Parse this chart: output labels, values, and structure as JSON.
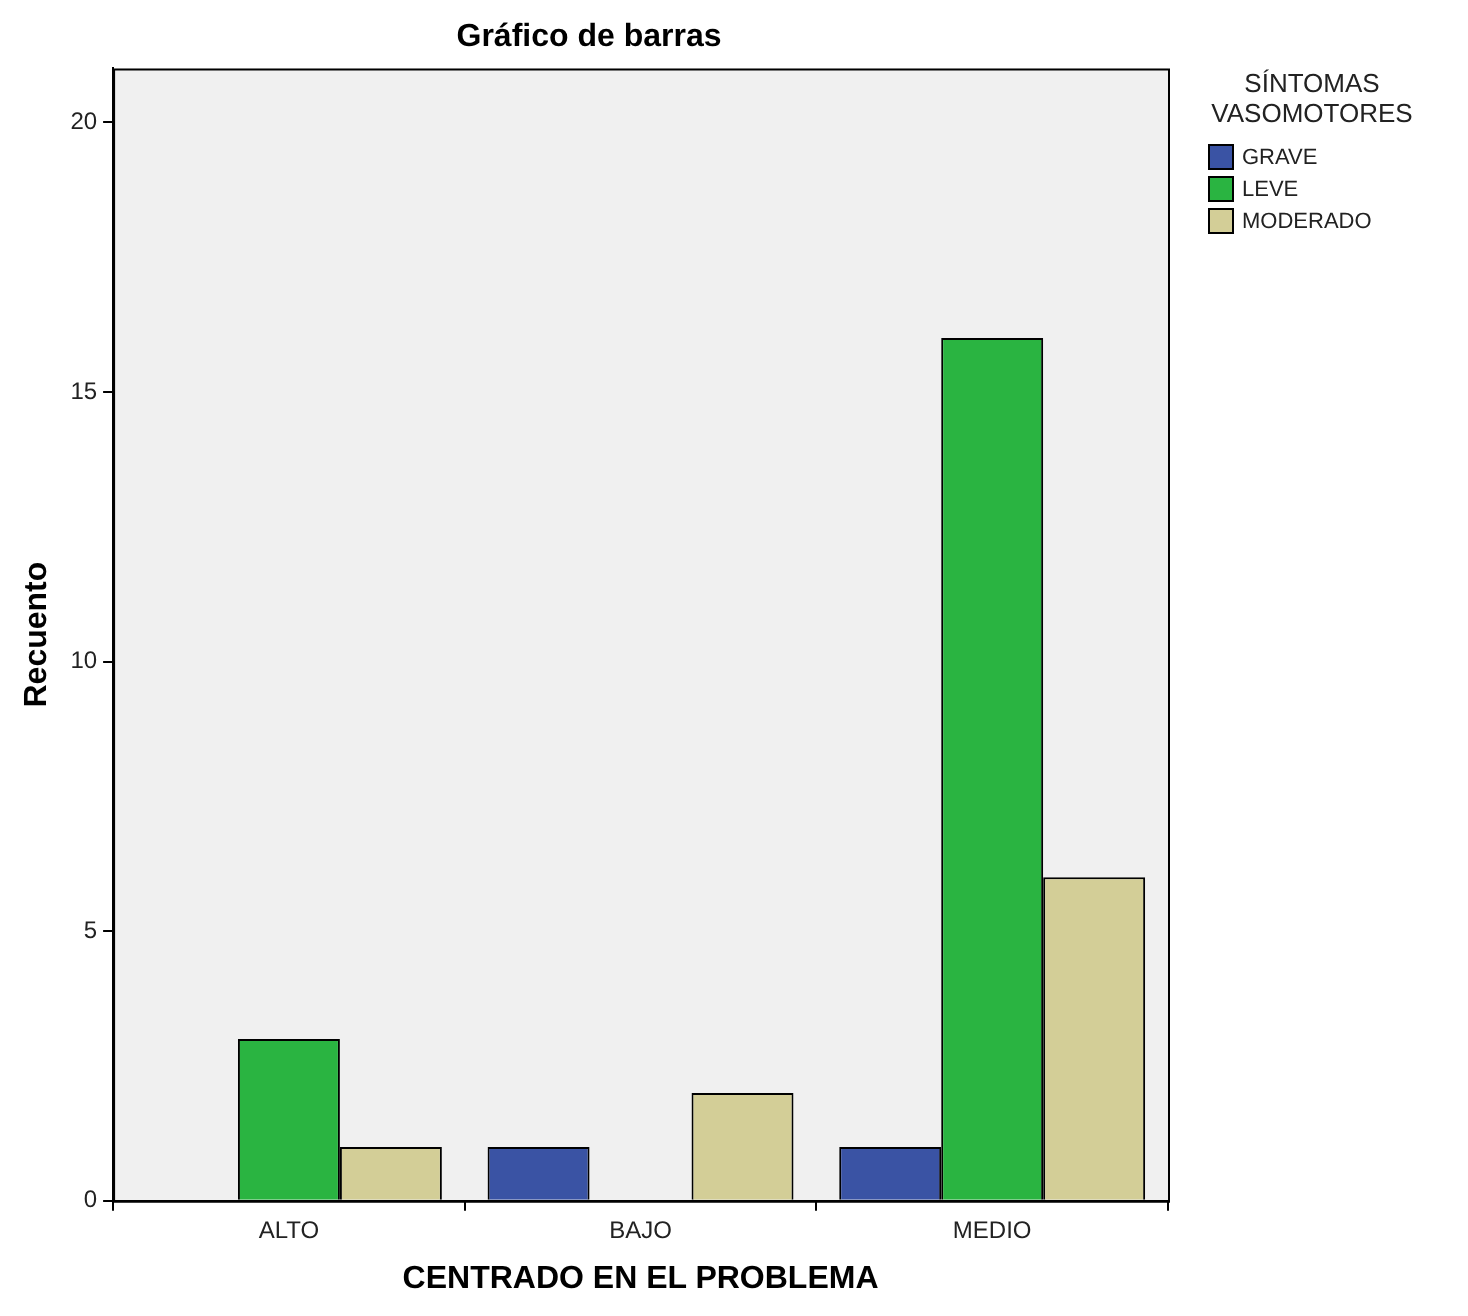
{
  "chart_data": {
    "type": "bar",
    "title": "Gráfico de barras",
    "xlabel": "CENTRADO EN EL PROBLEMA",
    "ylabel": "Recuento",
    "legend_title": "SÍNTOMAS VASOMOTORES",
    "categories": [
      "ALTO",
      "BAJO",
      "MEDIO"
    ],
    "series": [
      {
        "name": "GRAVE",
        "color": "#3a53a4",
        "values": [
          null,
          1,
          1
        ]
      },
      {
        "name": "LEVE",
        "color": "#2ab441",
        "values": [
          3,
          null,
          16
        ]
      },
      {
        "name": "MODERADO",
        "color": "#d3ce97",
        "values": [
          1,
          2,
          6
        ]
      }
    ],
    "ylim": [
      0,
      21
    ],
    "yticks": [
      0,
      5,
      10,
      15,
      20
    ],
    "grid": false,
    "legend": "top right"
  }
}
